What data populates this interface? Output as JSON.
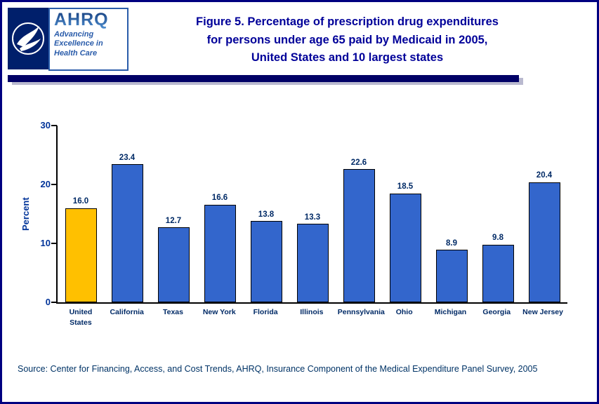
{
  "header": {
    "title_lines": [
      "Figure 5. Percentage of prescription drug expenditures",
      "for persons under age 65 paid by Medicaid in 2005,",
      "United States and 10 largest states"
    ],
    "ahrq": {
      "name": "AHRQ",
      "tagline_lines": [
        "Advancing",
        "Excellence in",
        "Health Care"
      ]
    }
  },
  "chart_data": {
    "type": "bar",
    "title": "Figure 5. Percentage of prescription drug expenditures for persons under age 65 paid by Medicaid in 2005, United States and 10 largest states",
    "categories": [
      "United States",
      "California",
      "Texas",
      "New York",
      "Florida",
      "Illinois",
      "Pennsylvania",
      "Ohio",
      "Michigan",
      "Georgia",
      "New Jersey"
    ],
    "values": [
      16.0,
      23.4,
      12.7,
      16.6,
      13.8,
      13.3,
      22.6,
      18.5,
      8.9,
      9.8,
      20.4
    ],
    "value_labels": [
      "16.0",
      "23.4",
      "12.7",
      "16.6",
      "13.8",
      "13.3",
      "22.6",
      "18.5",
      "8.9",
      "9.8",
      "20.4"
    ],
    "xlabel": "",
    "ylabel": "Percent",
    "ylim": [
      0,
      30
    ],
    "yticks": [
      0,
      10,
      20,
      30
    ],
    "grid": false,
    "legend": "none",
    "bar_color": "#3366CC",
    "highlight_index": 0,
    "highlight_color": "#FFC000",
    "bar_border_color": "#000000"
  },
  "footer": {
    "source": "Source: Center for Financing, Access, and Cost Trends, AHRQ, Insurance Component of the Medical Expenditure Panel Survey, 2005"
  }
}
